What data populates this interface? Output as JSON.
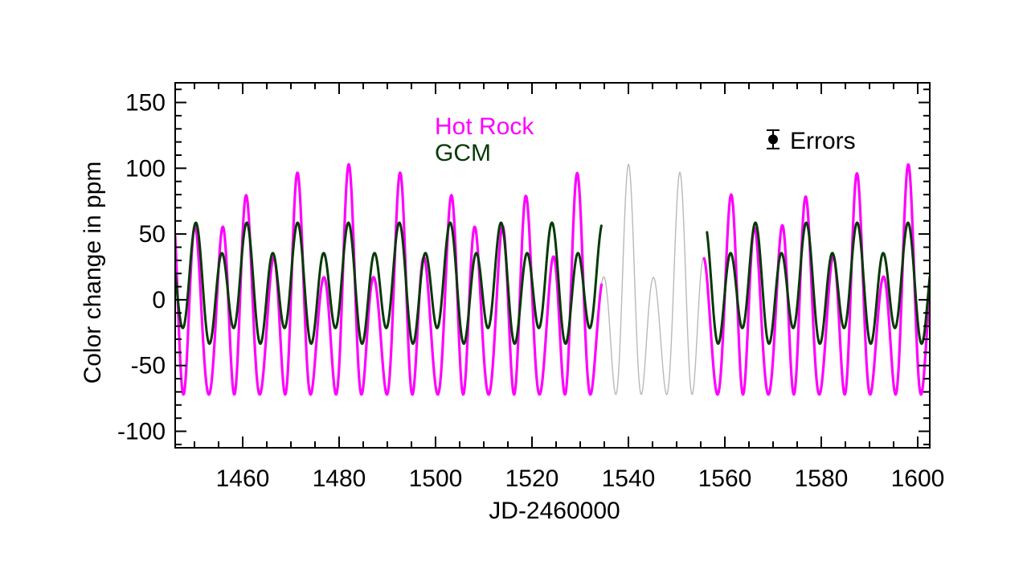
{
  "figure": {
    "background": "#ffffff",
    "frame_color": "#000000"
  },
  "chart_data": {
    "type": "line",
    "title": "",
    "xlabel": "JD-2460000",
    "ylabel": "Color change in ppm",
    "xlim": [
      1446,
      1602.5
    ],
    "ylim": [
      -112.5,
      165
    ],
    "grid": false,
    "x_major_ticks": [
      1460,
      1480,
      1500,
      1520,
      1540,
      1560,
      1580,
      1600
    ],
    "x_minor_step": 5,
    "y_major_ticks": [
      -100,
      -50,
      0,
      50,
      100,
      150
    ],
    "y_minor_step": 10,
    "data_gap_days": [
      1534.4,
      1555.7
    ],
    "draw_order": [
      2,
      0,
      1
    ],
    "series": [
      {
        "name": "Hot Rock",
        "color": "#ff00ff",
        "width": 3.2,
        "segments": [
          [
            1446,
            1534.4
          ],
          [
            1555.7,
            1602.5
          ]
        ],
        "model": {
          "offset": -6.5,
          "components": [
            {
              "amplitude": 65.5,
              "period": 5.275,
              "t_peak": 1482.0
            },
            {
              "amplitude": 44,
              "period": 11.6,
              "t_peak": 1482.0,
              "gate": {
                "period": 5.275,
                "t_peak": 1482.0
              }
            }
          ]
        },
        "approx": {
          "max_ppm": 103,
          "min_ppm": -75,
          "main_peak_spacing_days": 10.55
        }
      },
      {
        "name": "GCM",
        "color": "#043a04",
        "width": 3.0,
        "segments": [
          [
            1446,
            1534.4
          ],
          [
            1556.3,
            1602.5
          ]
        ],
        "model": {
          "offset": 10,
          "components": [
            {
              "amplitude": 37,
              "period": 5.275,
              "t_peak": 1482.0
            },
            {
              "amplitude": 13,
              "period": 10.55,
              "t_peak": 1481.2
            }
          ]
        },
        "approx": {
          "max_ppm": 60,
          "min_ppm": -40,
          "tall_short_peak_alternation_ppm": [
            59,
            35
          ]
        }
      },
      {
        "name": "gap interpolation (Hot Rock model, unobserved)",
        "color": "#b9b9b9",
        "width": 1.4,
        "segments": [
          [
            1534.4,
            1555.7
          ]
        ],
        "model": {
          "offset": -6.5,
          "components": [
            {
              "amplitude": 65.5,
              "period": 5.275,
              "t_peak": 1482.0
            },
            {
              "amplitude": 44,
              "period": 11.6,
              "t_peak": 1482.0,
              "gate": {
                "period": 5.275,
                "t_peak": 1482.0
              }
            }
          ]
        },
        "approx": {
          "max_ppm": 102,
          "min_ppm": -55
        }
      }
    ],
    "legend": {
      "hot_rock_label": "Hot Rock",
      "gcm_label": "GCM"
    },
    "error_bar": {
      "label": "Errors",
      "x_day": 1570,
      "y_ppm": 122,
      "half_error_ppm": 7,
      "color": "#000000"
    }
  }
}
